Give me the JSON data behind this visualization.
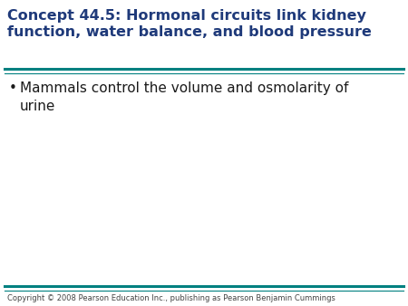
{
  "title_line1": "Concept 44.5: Hormonal circuits link kidney",
  "title_line2": "function, water balance, and blood pressure",
  "title_color": "#1F3A7A",
  "title_fontsize": 11.5,
  "bullet_text_line1": "Mammals control the volume and osmolarity of",
  "bullet_text_line2": "urine",
  "bullet_color": "#1a1a1a",
  "bullet_fontsize": 11.0,
  "separator_color": "#008080",
  "copyright_text": "Copyright © 2008 Pearson Education Inc., publishing as Pearson Benjamin Cummings",
  "copyright_fontsize": 6.0,
  "background_color": "#ffffff"
}
